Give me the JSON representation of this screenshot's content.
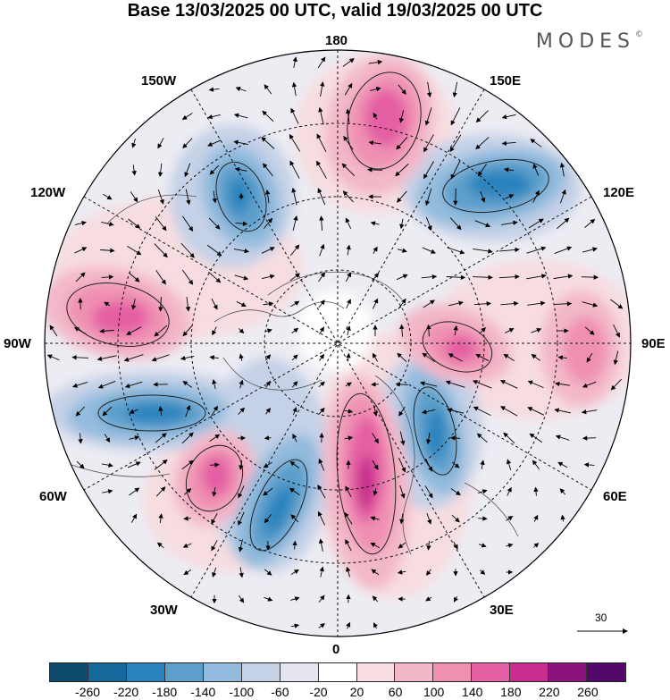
{
  "title": "Base 13/03/2025 00 UTC, valid 19/03/2025 00 UTC",
  "brand": "MODES",
  "brand_mark": "©",
  "longitude_labels": {
    "top": "180",
    "top_left": "150W",
    "top_right": "150E",
    "upper_left": "120W",
    "upper_right": "120E",
    "left": "90W",
    "right": "90E",
    "lower_left": "60W",
    "lower_right": "60E",
    "bottom_left": "30W",
    "bottom_right": "30E",
    "bottom": "0"
  },
  "vector_scale": "30",
  "colorbar": {
    "colors": [
      "#0f4b6e",
      "#17679a",
      "#2a83bd",
      "#5c9fcb",
      "#93bbdd",
      "#c5d1e7",
      "#e5e5f0",
      "#ffffff",
      "#f7dde0",
      "#f3b8c8",
      "#ef90b3",
      "#e45fa3",
      "#c62d8c",
      "#8c137b",
      "#52086b"
    ],
    "ticks": [
      "-260",
      "-220",
      "-180",
      "-140",
      "-100",
      "-60",
      "-20",
      "20",
      "60",
      "100",
      "140",
      "180",
      "220",
      "260"
    ]
  }
}
